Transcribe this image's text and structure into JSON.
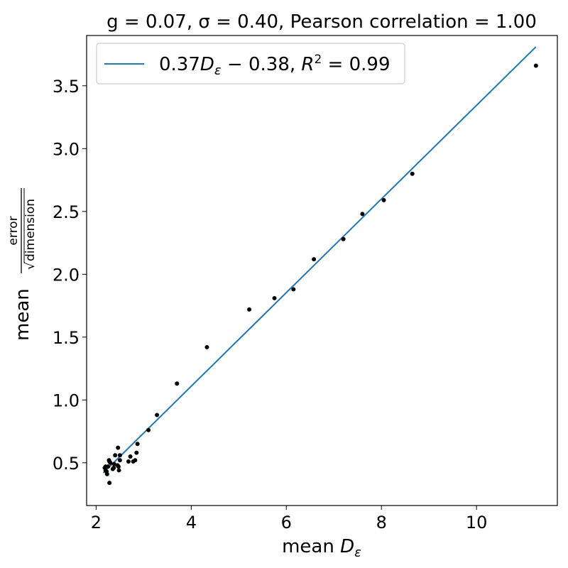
{
  "chart_data": {
    "type": "scatter",
    "title": "g = 0.07, σ = 0.40, Pearson correlation = 1.00",
    "xlabel": "mean D_ε",
    "ylabel": "mean error/√dimension",
    "xlim": [
      1.8,
      11.7
    ],
    "ylim": [
      0.16,
      3.9
    ],
    "xticks": [
      2,
      4,
      6,
      8,
      10
    ],
    "yticks": [
      0.5,
      1.0,
      1.5,
      2.0,
      2.5,
      3.0,
      3.5
    ],
    "grid": false,
    "legend_position": "top-left",
    "fit_line": {
      "name": "0.37D_ε − 0.38, R² = 0.99",
      "x": [
        2.15,
        11.25
      ],
      "y": [
        0.42,
        3.81
      ],
      "color": "#1f77b4"
    },
    "points": {
      "color": "#000000",
      "x": [
        11.25,
        8.65,
        8.05,
        7.6,
        7.2,
        6.58,
        6.15,
        5.75,
        5.22,
        4.33,
        3.7,
        3.28,
        3.1,
        2.87,
        2.85,
        2.82,
        2.78,
        2.72,
        2.68,
        2.5,
        2.5,
        2.48,
        2.47,
        2.46,
        2.45,
        2.4,
        2.38,
        2.37,
        2.35,
        2.3,
        2.28,
        2.28,
        2.27,
        2.25,
        2.23,
        2.22,
        2.2,
        2.2,
        2.18
      ],
      "y": [
        3.66,
        2.8,
        2.59,
        2.48,
        2.28,
        2.12,
        1.88,
        1.81,
        1.72,
        1.42,
        1.13,
        0.88,
        0.76,
        0.65,
        0.58,
        0.52,
        0.51,
        0.55,
        0.51,
        0.56,
        0.52,
        0.44,
        0.47,
        0.62,
        0.48,
        0.56,
        0.49,
        0.46,
        0.45,
        0.5,
        0.34,
        0.51,
        0.52,
        0.47,
        0.41,
        0.43,
        0.47,
        0.44,
        0.46
      ]
    }
  }
}
